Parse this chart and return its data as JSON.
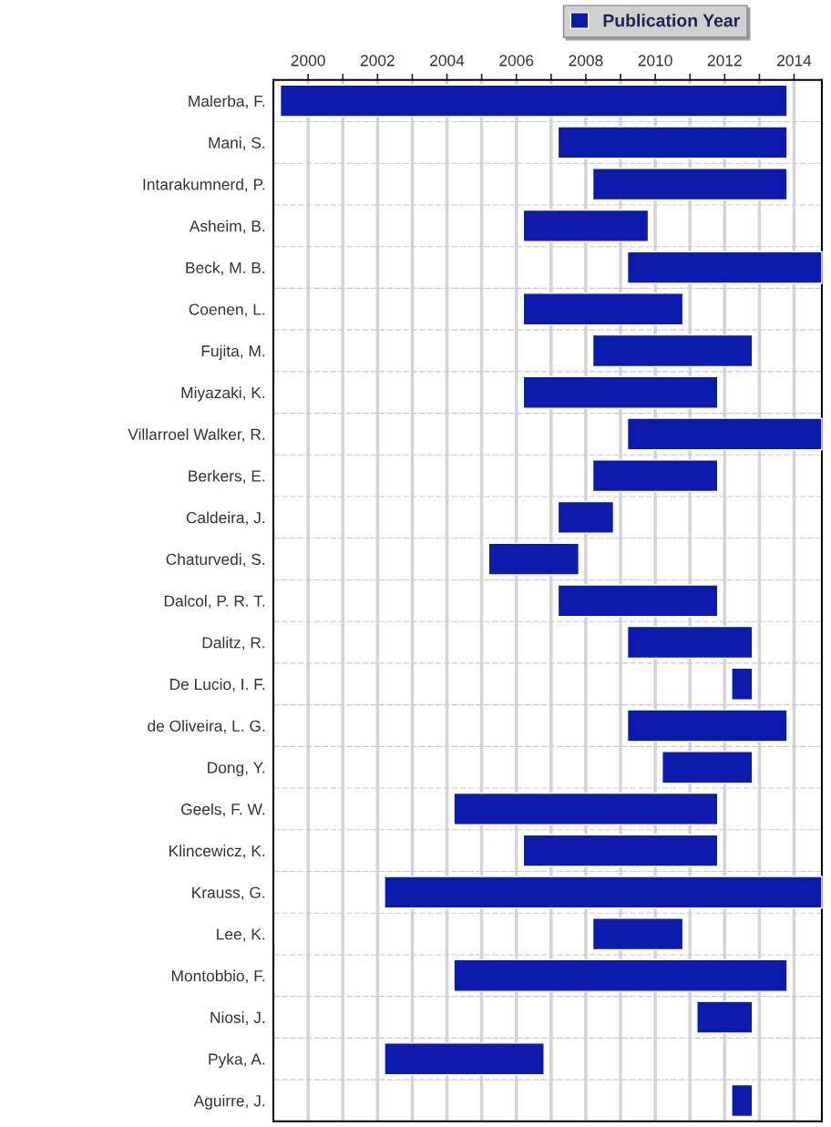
{
  "chart_data": {
    "type": "bar",
    "orientation": "horizontal",
    "categories": [
      "Malerba, F.",
      "Mani, S.",
      "Intarakumnerd, P.",
      "Asheim, B.",
      "Beck, M. B.",
      "Coenen, L.",
      "Fujita, M.",
      "Miyazaki, K.",
      "Villarroel Walker, R.",
      "Berkers, E.",
      "Caldeira, J.",
      "Chaturvedi, S.",
      "Dalcol, P. R. T.",
      "Dalitz, R.",
      "De Lucio, I. F.",
      "de Oliveira, L. G.",
      "Dong, Y.",
      "Geels, F. W.",
      "Klincewicz, K.",
      "Krauss, G.",
      "Lee, K.",
      "Montobbio, F.",
      "Niosi, J.",
      "Pyka, A.",
      "Aguirre, J."
    ],
    "series": [
      {
        "name": "Publication Year",
        "color": "#0c1bab",
        "base": [
          1999.2,
          2007.2,
          2008.2,
          2006.2,
          2009.2,
          2006.2,
          2008.2,
          2006.2,
          2009.2,
          2008.2,
          2007.2,
          2005.2,
          2007.2,
          2009.2,
          2012.2,
          2009.2,
          2010.2,
          2004.2,
          2006.2,
          2002.2,
          2008.2,
          2004.2,
          2011.2,
          2002.2,
          2012.2
        ],
        "values": [
          14.6,
          6.6,
          5.6,
          3.6,
          5.6,
          4.6,
          4.6,
          5.6,
          5.6,
          3.6,
          1.6,
          2.6,
          4.6,
          3.6,
          0.6,
          4.6,
          2.6,
          7.6,
          5.6,
          12.6,
          2.6,
          9.6,
          1.6,
          4.6,
          0.6
        ]
      }
    ],
    "xlim": [
      1999,
      2014.8
    ],
    "xticks": [
      2000,
      {
        "value": 2001,
        "label": null
      },
      2002,
      {
        "value": 2003,
        "label": null
      },
      2004,
      {
        "value": 2005,
        "label": null
      },
      2006,
      {
        "value": 2007,
        "label": null
      },
      2008,
      {
        "value": 2009,
        "label": null
      },
      2010,
      {
        "value": 2011,
        "label": null
      },
      2012,
      {
        "value": 2013,
        "label": null
      },
      2014
    ],
    "grid": true,
    "legend": "top right"
  }
}
